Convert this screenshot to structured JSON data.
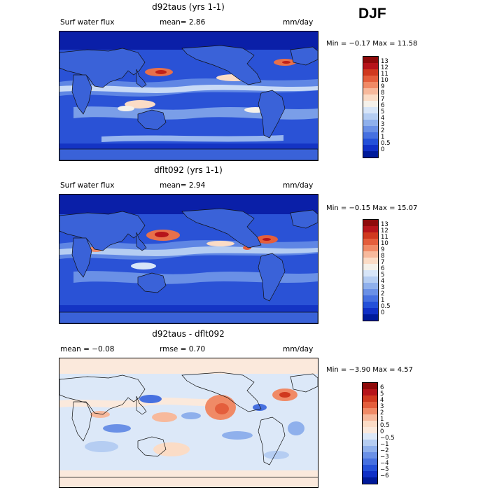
{
  "season": "DJF",
  "panels": [
    {
      "title": "d92taus (yrs 1-1)",
      "left_label": "Surf water flux",
      "mid_label": "mean=   2.86",
      "right_label": "mm/day",
      "minmax": "Min =  −0.17 Max =  11.58",
      "colorbar": {
        "colors": [
          "#8e0a0a",
          "#b6141a",
          "#d0391f",
          "#e45e3c",
          "#f08a66",
          "#f7b99c",
          "#fbdcc6",
          "#f5f1ea",
          "#d7e5f8",
          "#b5cdf2",
          "#8fb0ec",
          "#6a90e6",
          "#4670e0",
          "#2450d8",
          "#1030c6",
          "#001a9a"
        ],
        "labels": [
          "13",
          "12",
          "11",
          "10",
          "9",
          "8",
          "7",
          "6",
          "5",
          "4",
          "3",
          "2",
          "1",
          "0.5",
          "0"
        ]
      }
    },
    {
      "title": "dflt092 (yrs 1-1)",
      "left_label": "Surf water flux",
      "mid_label": "mean=   2.94",
      "right_label": "mm/day",
      "minmax": "Min =  −0.15 Max =  15.07",
      "colorbar": {
        "colors": [
          "#8e0a0a",
          "#b6141a",
          "#d0391f",
          "#e45e3c",
          "#f08a66",
          "#f7b99c",
          "#fbdcc6",
          "#f5f1ea",
          "#d7e5f8",
          "#b5cdf2",
          "#8fb0ec",
          "#6a90e6",
          "#4670e0",
          "#2450d8",
          "#1030c6",
          "#001a9a"
        ],
        "labels": [
          "13",
          "12",
          "11",
          "10",
          "9",
          "8",
          "7",
          "6",
          "5",
          "4",
          "3",
          "2",
          "1",
          "0.5",
          "0"
        ]
      }
    },
    {
      "title": "d92taus - dflt092",
      "left_label": "mean =  −0.08",
      "mid_label": "rmse =    0.70",
      "right_label": "mm/day",
      "minmax": "Min =  −3.90 Max =   4.57",
      "colorbar": {
        "colors": [
          "#8e0a0a",
          "#b6141a",
          "#d0391f",
          "#e45e3c",
          "#f08a66",
          "#f7b99c",
          "#fbdcc6",
          "#fbe9dc",
          "#dce8f8",
          "#b5cdf2",
          "#8fb0ec",
          "#6a90e6",
          "#4670e0",
          "#2450d8",
          "#1030c6",
          "#001a9a"
        ],
        "labels": [
          "6",
          "5",
          "4",
          "3",
          "2",
          "1",
          "0.5",
          "0",
          "−0.5",
          "−1",
          "−2",
          "−3",
          "−4",
          "−5",
          "−6"
        ]
      }
    }
  ]
}
